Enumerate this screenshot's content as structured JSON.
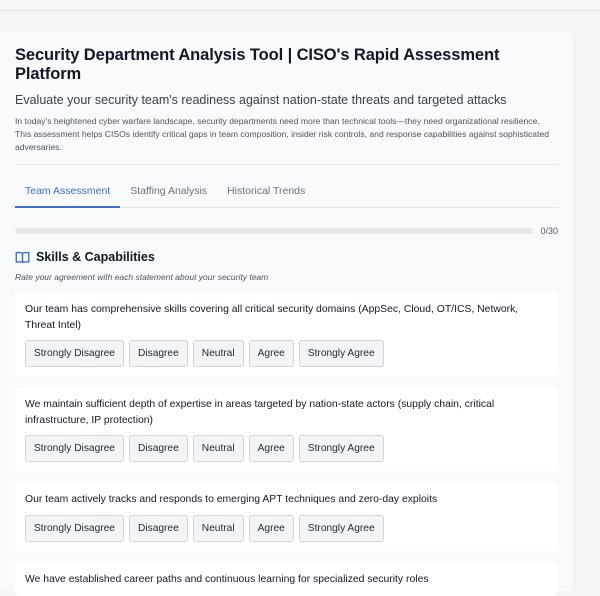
{
  "header": {
    "title": "Security Department Analysis Tool | CISO's Rapid Assessment Platform",
    "subtitle": "Evaluate your security team's readiness against nation-state threats and targeted attacks",
    "description": "In today's heightened cyber warfare landscape, security departments need more than technical tools—they need organizational resilience. This assessment helps CISOs identify critical gaps in team composition, insider risk controls, and response capabilities against sophisticated adversaries."
  },
  "tabs": [
    {
      "label": "Team Assessment",
      "active": true
    },
    {
      "label": "Staffing Analysis"
    },
    {
      "label": "Historical Trends"
    }
  ],
  "progress": {
    "answered": 0,
    "total": 30,
    "label": "0/30"
  },
  "section": {
    "icon": "book-open-icon",
    "title": "Skills & Capabilities",
    "instruction": "Rate your agreement with each statement about your security team"
  },
  "options": [
    "Strongly Disagree",
    "Disagree",
    "Neutral",
    "Agree",
    "Strongly Agree"
  ],
  "questions": [
    "Our team has comprehensive skills covering all critical security domains (AppSec, Cloud, OT/ICS, Network, Threat Intel)",
    "We maintain sufficient depth of expertise in areas targeted by nation-state actors (supply chain, critical infrastructure, IP protection)",
    "Our team actively tracks and responds to emerging APT techniques and zero-day exploits",
    "We have established career paths and continuous learning for specialized security roles"
  ],
  "colors": {
    "accent": "#3b6fd4"
  }
}
